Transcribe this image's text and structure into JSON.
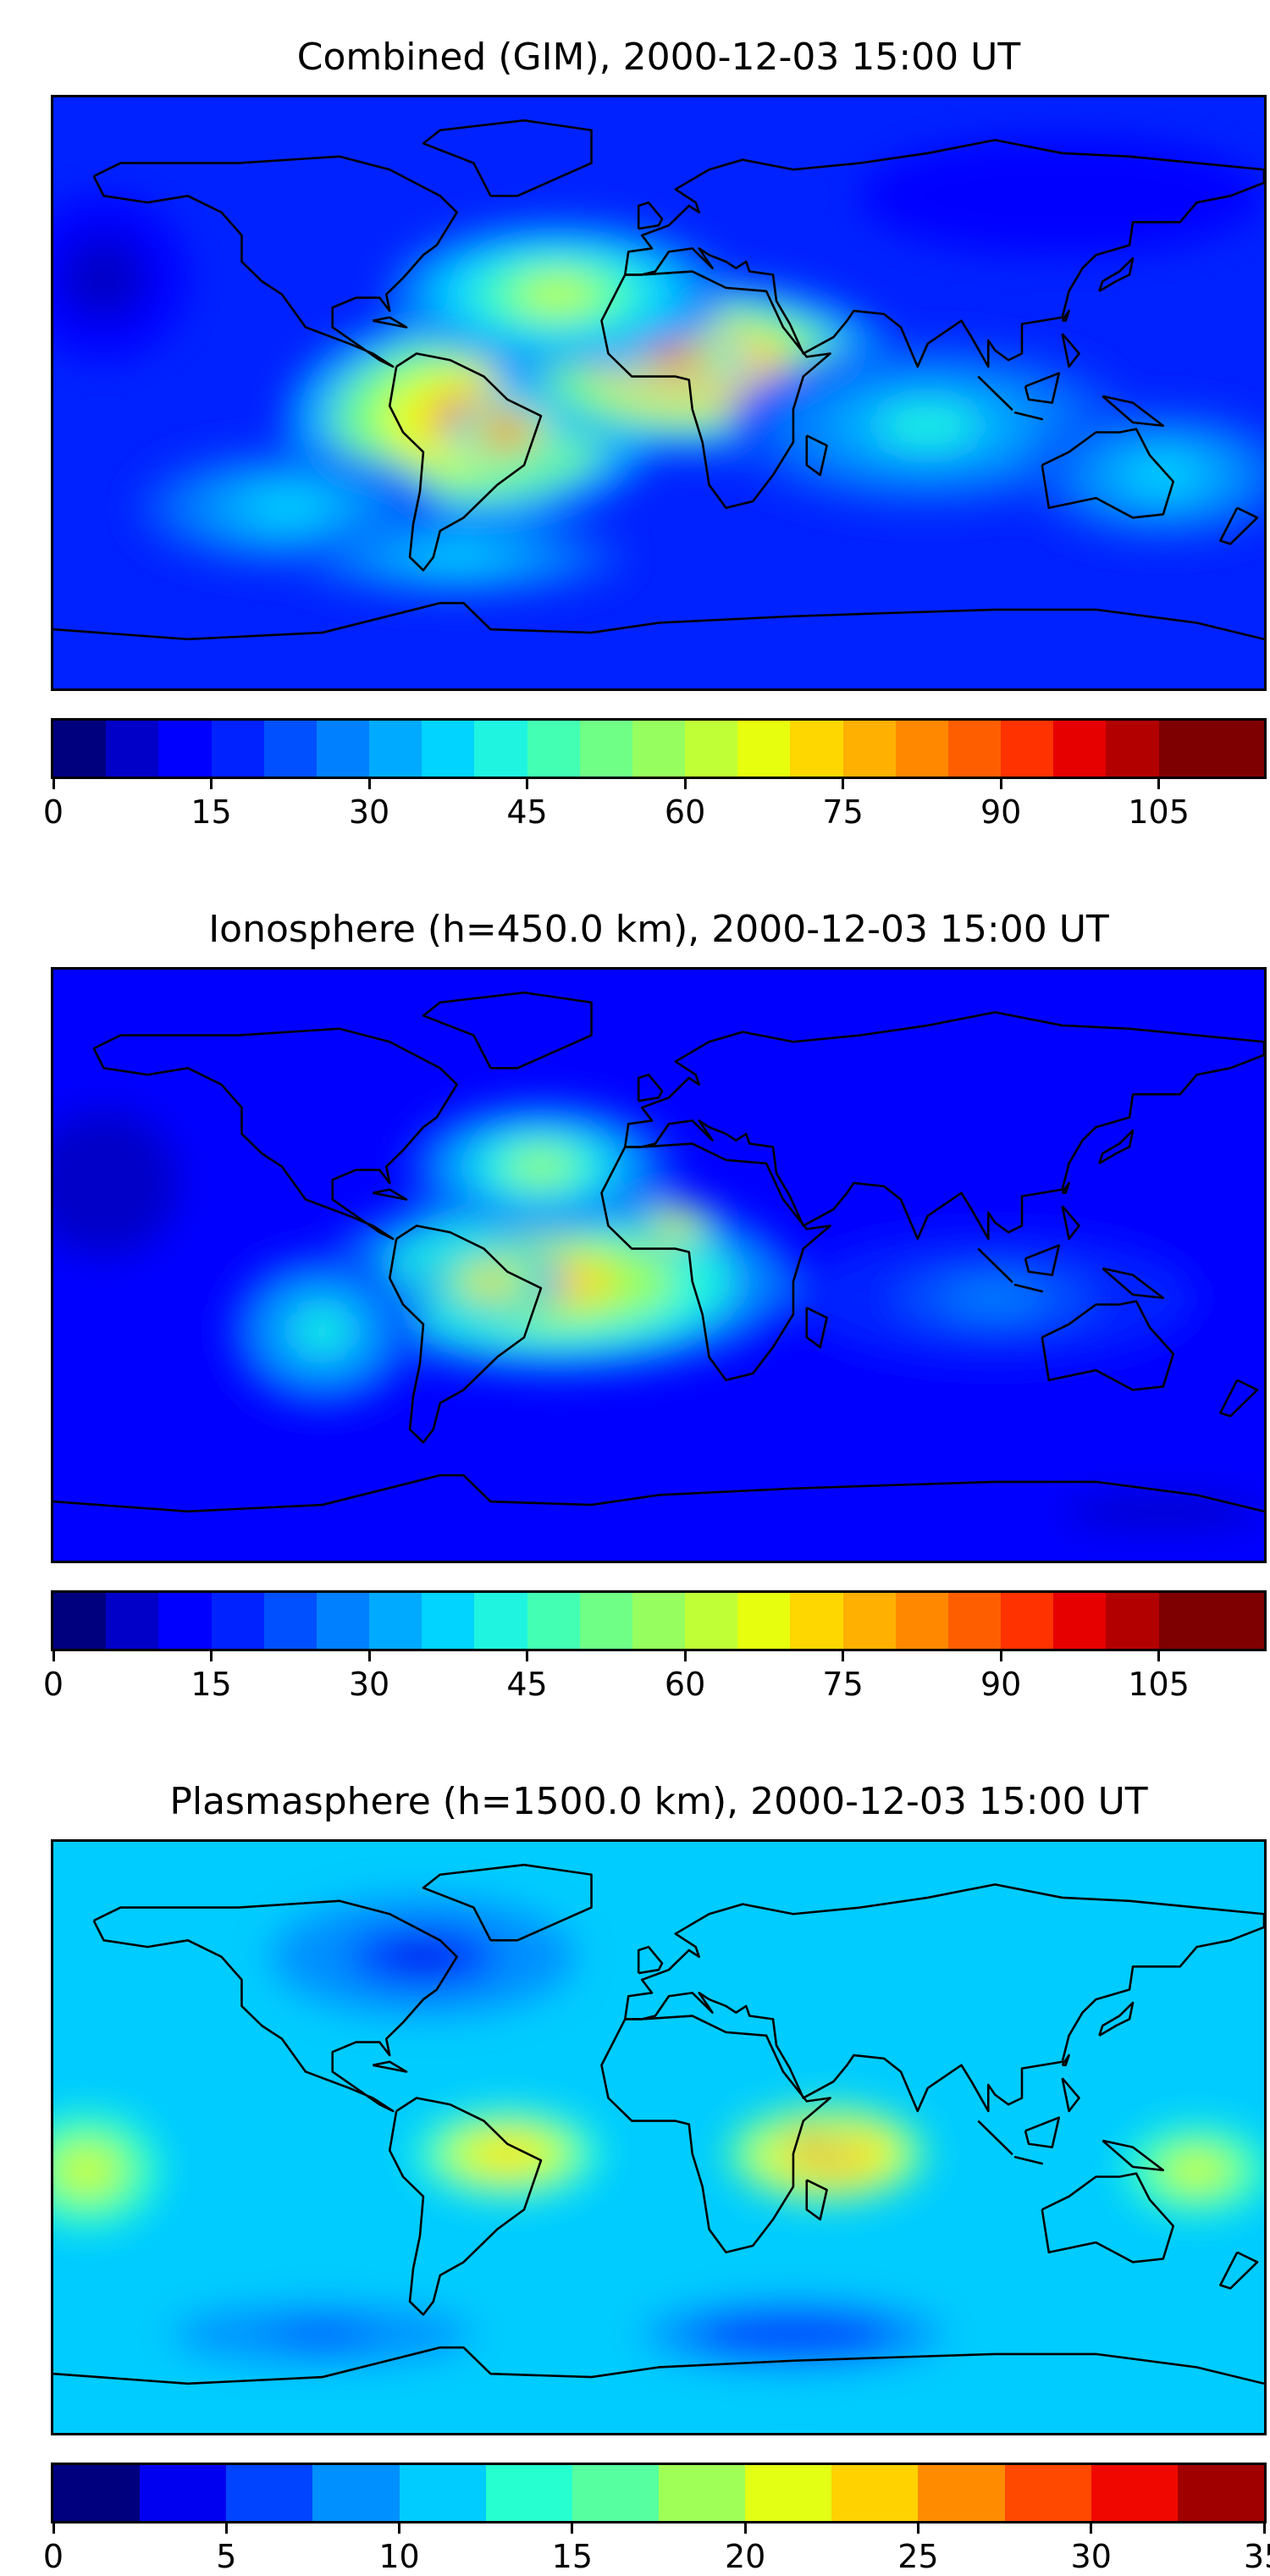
{
  "panels": [
    {
      "title": "Combined (GIM), 2000-12-03 15:00 UT",
      "colorbar": {
        "min": 0,
        "max": 115,
        "step": 5,
        "ticks": [
          "0",
          "15",
          "30",
          "45",
          "60",
          "75",
          "90",
          "105"
        ],
        "tick_values": [
          0,
          15,
          30,
          45,
          60,
          75,
          90,
          105
        ]
      },
      "field": {
        "background_level": 15,
        "blobs": [
          {
            "lon": -55,
            "lat": -8,
            "level": 85,
            "rx": 55,
            "ry": 32
          },
          {
            "lon": 10,
            "lat": 8,
            "level": 90,
            "rx": 60,
            "ry": 26
          },
          {
            "lon": -45,
            "lat": -12,
            "level": 95,
            "rx": 18,
            "ry": 10
          },
          {
            "lon": 5,
            "lat": 10,
            "level": 95,
            "rx": 22,
            "ry": 9
          },
          {
            "lon": -30,
            "lat": 30,
            "level": 60,
            "rx": 50,
            "ry": 22
          },
          {
            "lon": 80,
            "lat": -10,
            "level": 40,
            "rx": 60,
            "ry": 25
          },
          {
            "lon": 150,
            "lat": -25,
            "level": 35,
            "rx": 40,
            "ry": 20
          },
          {
            "lon": -110,
            "lat": -35,
            "level": 35,
            "rx": 45,
            "ry": 18
          },
          {
            "lon": -60,
            "lat": -50,
            "level": 35,
            "rx": 50,
            "ry": 12
          },
          {
            "lon": -165,
            "lat": 35,
            "level": 8,
            "rx": 25,
            "ry": 25
          },
          {
            "lon": 120,
            "lat": 60,
            "level": 10,
            "rx": 60,
            "ry": 18
          }
        ]
      }
    },
    {
      "title": "Ionosphere  (h=450.0 km), 2000-12-03 15:00 UT",
      "colorbar": {
        "min": 0,
        "max": 115,
        "step": 5,
        "ticks": [
          "0",
          "15",
          "30",
          "45",
          "60",
          "75",
          "90",
          "105"
        ],
        "tick_values": [
          0,
          15,
          30,
          45,
          60,
          75,
          90,
          105
        ]
      },
      "field": {
        "background_level": 12,
        "blobs": [
          {
            "lon": -30,
            "lat": -5,
            "level": 70,
            "rx": 70,
            "ry": 28
          },
          {
            "lon": 5,
            "lat": 12,
            "level": 80,
            "rx": 14,
            "ry": 8
          },
          {
            "lon": -50,
            "lat": -5,
            "level": 78,
            "rx": 22,
            "ry": 10
          },
          {
            "lon": -35,
            "lat": 30,
            "level": 55,
            "rx": 40,
            "ry": 20
          },
          {
            "lon": -100,
            "lat": -20,
            "level": 40,
            "rx": 30,
            "ry": 25
          },
          {
            "lon": 100,
            "lat": -10,
            "level": 25,
            "rx": 60,
            "ry": 20
          },
          {
            "lon": -165,
            "lat": 25,
            "level": 5,
            "rx": 30,
            "ry": 30
          },
          {
            "lon": 150,
            "lat": -75,
            "level": 8,
            "rx": 60,
            "ry": 10
          }
        ]
      }
    },
    {
      "title": "Plasmasphere (h=1500.0 km), 2000-12-03 15:00 UT",
      "colorbar": {
        "min": 0,
        "max": 35,
        "step": 2.5,
        "ticks": [
          "0",
          "5",
          "10",
          "15",
          "20",
          "25",
          "30",
          "35"
        ],
        "tick_values": [
          0,
          5,
          10,
          15,
          20,
          25,
          30,
          35
        ]
      },
      "field": {
        "background_level": 12,
        "blobs": [
          {
            "lon": 50,
            "lat": -5,
            "level": 28,
            "rx": 30,
            "ry": 15
          },
          {
            "lon": 45,
            "lat": -2,
            "level": 31,
            "rx": 12,
            "ry": 6
          },
          {
            "lon": -45,
            "lat": -5,
            "level": 23,
            "rx": 28,
            "ry": 14
          },
          {
            "lon": -170,
            "lat": -10,
            "level": 20,
            "rx": 22,
            "ry": 18
          },
          {
            "lon": 160,
            "lat": -10,
            "level": 22,
            "rx": 22,
            "ry": 14
          },
          {
            "lon": -70,
            "lat": 55,
            "level": 3,
            "rx": 45,
            "ry": 18
          },
          {
            "lon": 40,
            "lat": -60,
            "level": 5,
            "rx": 60,
            "ry": 14
          },
          {
            "lon": -100,
            "lat": -60,
            "level": 7,
            "rx": 60,
            "ry": 12
          }
        ]
      }
    }
  ],
  "colormap": [
    "#00007f",
    "#0000c8",
    "#0000ff",
    "#0022ff",
    "#0050ff",
    "#0080ff",
    "#00aaff",
    "#00d4ff",
    "#1ff4e0",
    "#43ffb3",
    "#6fff87",
    "#96ff5f",
    "#c0ff36",
    "#e7ff0f",
    "#ffd700",
    "#ffb000",
    "#ff8800",
    "#ff5e00",
    "#ff3200",
    "#e60000",
    "#b20000",
    "#7f0000"
  ],
  "colormap_plasma": [
    "#00007f",
    "#0000f0",
    "#0044ff",
    "#0090ff",
    "#00ccff",
    "#26ffd0",
    "#56ff9f",
    "#a0ff56",
    "#e3ff13",
    "#ffd200",
    "#ff8c00",
    "#ff4800",
    "#f00800",
    "#a00000"
  ]
}
